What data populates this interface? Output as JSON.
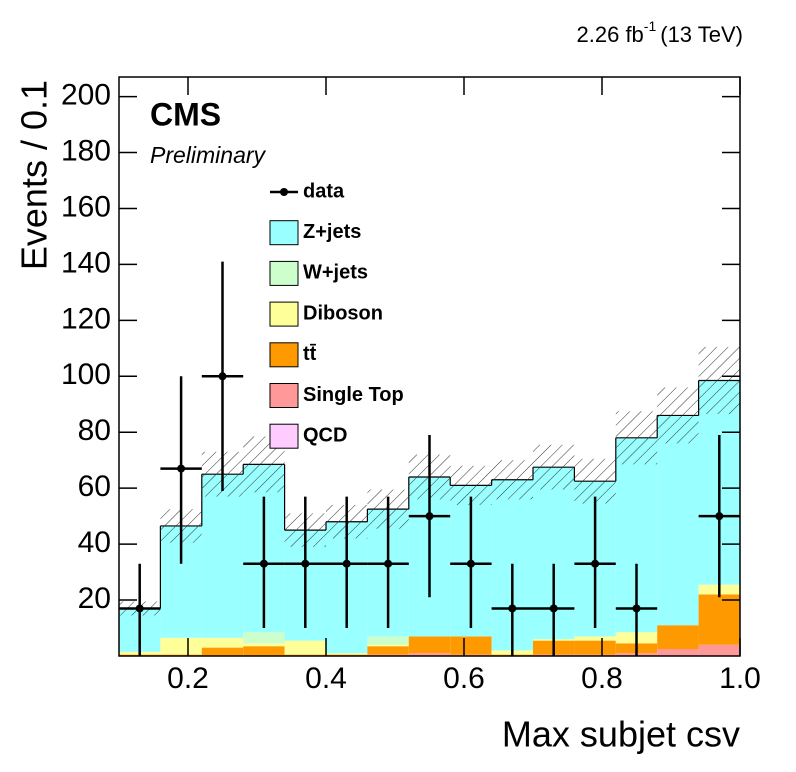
{
  "chart_data": {
    "type": "stacked-histogram",
    "lumi": "2.26 fb",
    "lumi_sup": "-1",
    "energy": "(13 TeV)",
    "title": "CMS",
    "subtitle": "Preliminary",
    "x_label": "Max subjet csv",
    "y_label": "Events / 0.1",
    "bins": [
      0.1,
      0.16,
      0.22,
      0.28,
      0.34,
      0.4,
      0.46,
      0.52,
      0.58,
      0.64,
      0.7,
      0.76,
      0.82,
      0.88,
      0.94,
      1.0
    ],
    "xlim": [
      0.1,
      1.0
    ],
    "xticks": [
      0.2,
      0.4,
      0.6,
      0.8,
      {
        "value": 1.0,
        "label": "1.0"
      }
    ],
    "ylim": [
      0,
      207
    ],
    "yticks": [
      20,
      40,
      60,
      80,
      100,
      120,
      140,
      160,
      180,
      200
    ],
    "data": {
      "name": "data",
      "color": "#000000",
      "values": [
        17,
        67,
        100,
        33,
        33,
        33,
        33,
        50,
        33,
        17,
        17,
        33,
        17,
        null,
        50
      ],
      "errors_low": [
        17,
        34,
        41,
        23,
        23,
        23,
        23,
        29,
        23,
        17,
        17,
        23,
        17,
        null,
        29
      ],
      "errors_high": [
        16,
        33,
        41,
        24,
        24,
        24,
        24,
        29,
        24,
        16,
        16,
        24,
        16,
        null,
        29
      ]
    },
    "series": [
      {
        "name": "Z+jets",
        "color": "#99ffff",
        "values": [
          15.5,
          40,
          58.5,
          60,
          39.5,
          47,
          45.5,
          57,
          54,
          61,
          61.5,
          55.5,
          69.5,
          75,
          73
        ]
      },
      {
        "name": "W+jets",
        "color": "#ccffcc",
        "values": [
          0,
          0,
          0,
          4,
          0,
          0,
          3,
          0,
          0,
          0,
          0,
          0,
          0,
          0,
          0
        ]
      },
      {
        "name": "Diboson",
        "color": "#ffff99",
        "values": [
          1,
          6,
          3.5,
          1,
          5,
          0.5,
          0.5,
          0,
          0,
          1.5,
          0.5,
          1.5,
          4,
          0,
          3.5
        ]
      },
      {
        "name": "tt̄",
        "color": "#ff9900",
        "values": [
          0.5,
          0.5,
          3,
          3.5,
          0.5,
          0.5,
          3,
          6,
          6.5,
          0.5,
          5,
          5,
          3.5,
          8.5,
          18
        ]
      },
      {
        "name": "Single Top",
        "color": "#ff9999",
        "values": [
          0,
          0,
          0,
          0,
          0,
          0,
          0.5,
          1,
          0.5,
          0,
          0.5,
          0.5,
          1,
          2.5,
          4
        ]
      },
      {
        "name": "QCD",
        "color": "#ffccff",
        "values": [
          0,
          0,
          0,
          0,
          0,
          0,
          0,
          0,
          0,
          0,
          0,
          0,
          0,
          0,
          0
        ]
      }
    ],
    "uncertainty": [
      2.5,
      6,
      8,
      10,
      6,
      6,
      7,
      8,
      7,
      7,
      8,
      8,
      9.5,
      10,
      12
    ]
  }
}
